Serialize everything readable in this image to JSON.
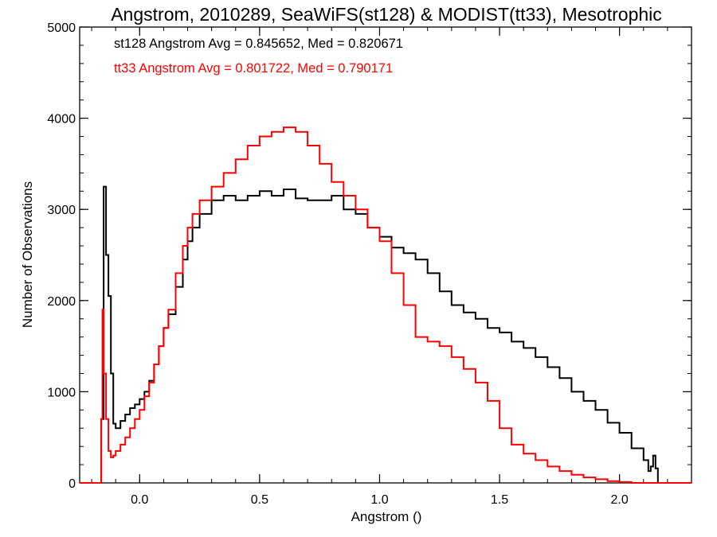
{
  "chart_data": {
    "type": "line",
    "step": true,
    "title": "Angstrom, 2010289, SeaWiFS(st128) & MODIST(tt33), Mesotrophic",
    "xlabel": "Angstrom ()",
    "ylabel": "Number of Observations",
    "xlim": [
      -0.25,
      2.3
    ],
    "ylim": [
      0,
      5000
    ],
    "x_ticks": [
      "0.0",
      "0.5",
      "1.0",
      "1.5",
      "2.0"
    ],
    "x_tick_values": [
      0.0,
      0.5,
      1.0,
      1.5,
      2.0
    ],
    "y_ticks": [
      "0",
      "1000",
      "2000",
      "3000",
      "4000",
      "5000"
    ],
    "y_tick_values": [
      0,
      1000,
      2000,
      3000,
      4000,
      5000
    ],
    "annotations": [
      {
        "text": "st128 Angstrom Avg = 0.845652, Med = 0.820671",
        "color": "#000000"
      },
      {
        "text": "tt33 Angstrom Avg = 0.801722, Med = 0.790171",
        "color": "#ff0000"
      }
    ],
    "series": [
      {
        "color": "#000000",
        "x": [
          -0.25,
          -0.17,
          -0.16,
          -0.15,
          -0.14,
          -0.13,
          -0.12,
          -0.11,
          -0.1,
          -0.08,
          -0.06,
          -0.04,
          -0.02,
          0.0,
          0.02,
          0.04,
          0.06,
          0.08,
          0.1,
          0.12,
          0.15,
          0.18,
          0.2,
          0.22,
          0.25,
          0.3,
          0.35,
          0.4,
          0.45,
          0.5,
          0.55,
          0.6,
          0.65,
          0.7,
          0.75,
          0.8,
          0.85,
          0.9,
          0.95,
          1.0,
          1.05,
          1.1,
          1.15,
          1.2,
          1.25,
          1.3,
          1.35,
          1.4,
          1.45,
          1.5,
          1.55,
          1.6,
          1.65,
          1.7,
          1.75,
          1.8,
          1.85,
          1.9,
          1.95,
          2.0,
          2.05,
          2.1,
          2.12,
          2.13,
          2.14,
          2.15,
          2.16,
          2.2,
          2.3
        ],
        "y": [
          0,
          0,
          700,
          3250,
          2500,
          2050,
          1200,
          650,
          600,
          680,
          750,
          820,
          860,
          920,
          1000,
          1120,
          1300,
          1500,
          1700,
          1850,
          2150,
          2450,
          2650,
          2800,
          2950,
          3100,
          3150,
          3100,
          3150,
          3200,
          3150,
          3220,
          3120,
          3100,
          3100,
          3150,
          3000,
          2950,
          2800,
          2700,
          2580,
          2520,
          2450,
          2300,
          2100,
          1950,
          1870,
          1800,
          1700,
          1650,
          1550,
          1480,
          1380,
          1270,
          1150,
          1000,
          900,
          800,
          660,
          550,
          380,
          250,
          130,
          180,
          300,
          160,
          0,
          0,
          0
        ]
      },
      {
        "color": "#ff0000",
        "x": [
          -0.25,
          -0.17,
          -0.16,
          -0.155,
          -0.15,
          -0.14,
          -0.13,
          -0.12,
          -0.11,
          -0.1,
          -0.08,
          -0.06,
          -0.04,
          -0.02,
          0.0,
          0.02,
          0.04,
          0.06,
          0.08,
          0.1,
          0.12,
          0.15,
          0.18,
          0.2,
          0.22,
          0.25,
          0.3,
          0.35,
          0.4,
          0.45,
          0.5,
          0.55,
          0.6,
          0.65,
          0.7,
          0.75,
          0.8,
          0.85,
          0.9,
          0.95,
          1.0,
          1.05,
          1.1,
          1.15,
          1.2,
          1.25,
          1.3,
          1.35,
          1.4,
          1.45,
          1.5,
          1.55,
          1.6,
          1.65,
          1.7,
          1.75,
          1.8,
          1.85,
          1.9,
          1.95,
          2.0,
          2.05,
          2.1,
          2.15,
          2.2,
          2.3
        ],
        "y": [
          0,
          0,
          700,
          1900,
          1200,
          700,
          350,
          280,
          300,
          350,
          420,
          500,
          600,
          700,
          800,
          950,
          1100,
          1300,
          1500,
          1700,
          1900,
          2300,
          2600,
          2800,
          2950,
          3100,
          3250,
          3400,
          3550,
          3700,
          3800,
          3850,
          3900,
          3850,
          3700,
          3500,
          3300,
          3150,
          3000,
          2800,
          2650,
          2300,
          1950,
          1600,
          1550,
          1500,
          1380,
          1250,
          1100,
          900,
          600,
          420,
          320,
          250,
          180,
          130,
          90,
          60,
          40,
          20,
          10,
          0,
          0,
          0,
          0,
          0
        ]
      }
    ]
  }
}
